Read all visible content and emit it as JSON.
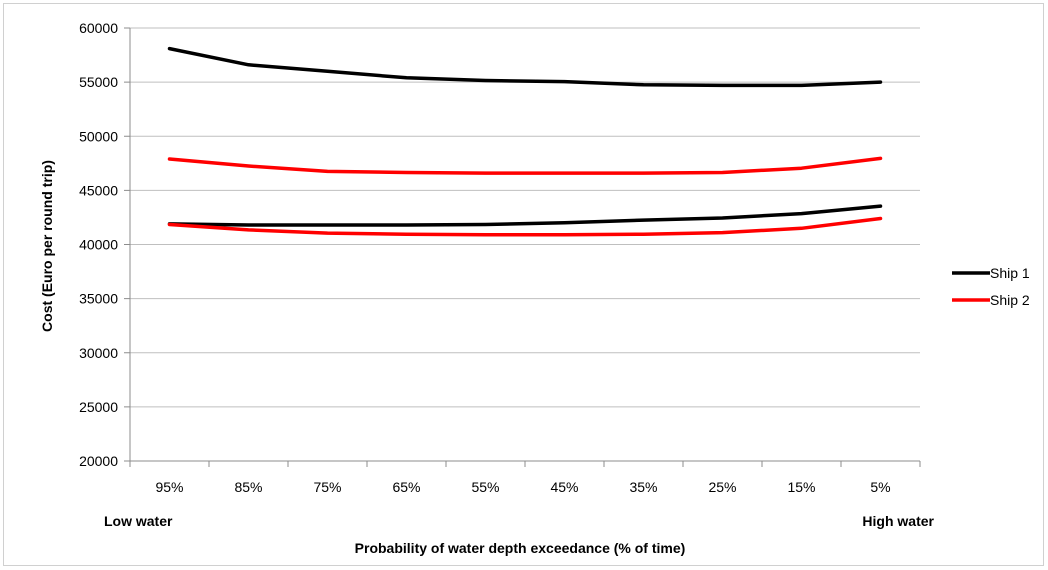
{
  "chart_data": {
    "type": "line",
    "categories": [
      "95%",
      "85%",
      "75%",
      "65%",
      "55%",
      "45%",
      "35%",
      "25%",
      "15%",
      "5%"
    ],
    "ylabel": "Cost (Euro per round trip)",
    "xlabel": "Probability of water depth exceedance (% of time)",
    "x_left_note": "Low water",
    "x_right_note": "High water",
    "ylim": [
      20000,
      60000
    ],
    "yticks": [
      20000,
      25000,
      30000,
      35000,
      40000,
      45000,
      50000,
      55000,
      60000
    ],
    "grid": "horizontal",
    "legend_position": "right",
    "legend": [
      {
        "label": "Ship 1",
        "color": "#000000"
      },
      {
        "label": "Ship 2",
        "color": "#ff0000"
      }
    ],
    "series": [
      {
        "legend_index": 0,
        "color": "#000000",
        "values": [
          58100,
          56600,
          56000,
          55400,
          55150,
          55050,
          54750,
          54700,
          54700,
          55000
        ]
      },
      {
        "legend_index": 0,
        "color": "#000000",
        "values": [
          41900,
          41800,
          41800,
          41800,
          41850,
          42000,
          42250,
          42450,
          42850,
          43550
        ]
      },
      {
        "legend_index": 1,
        "color": "#ff0000",
        "values": [
          47900,
          47250,
          46750,
          46650,
          46600,
          46600,
          46600,
          46650,
          47050,
          47950
        ]
      },
      {
        "legend_index": 1,
        "color": "#ff0000",
        "values": [
          41850,
          41350,
          41050,
          40950,
          40900,
          40900,
          40950,
          41100,
          41500,
          42400
        ]
      }
    ]
  }
}
